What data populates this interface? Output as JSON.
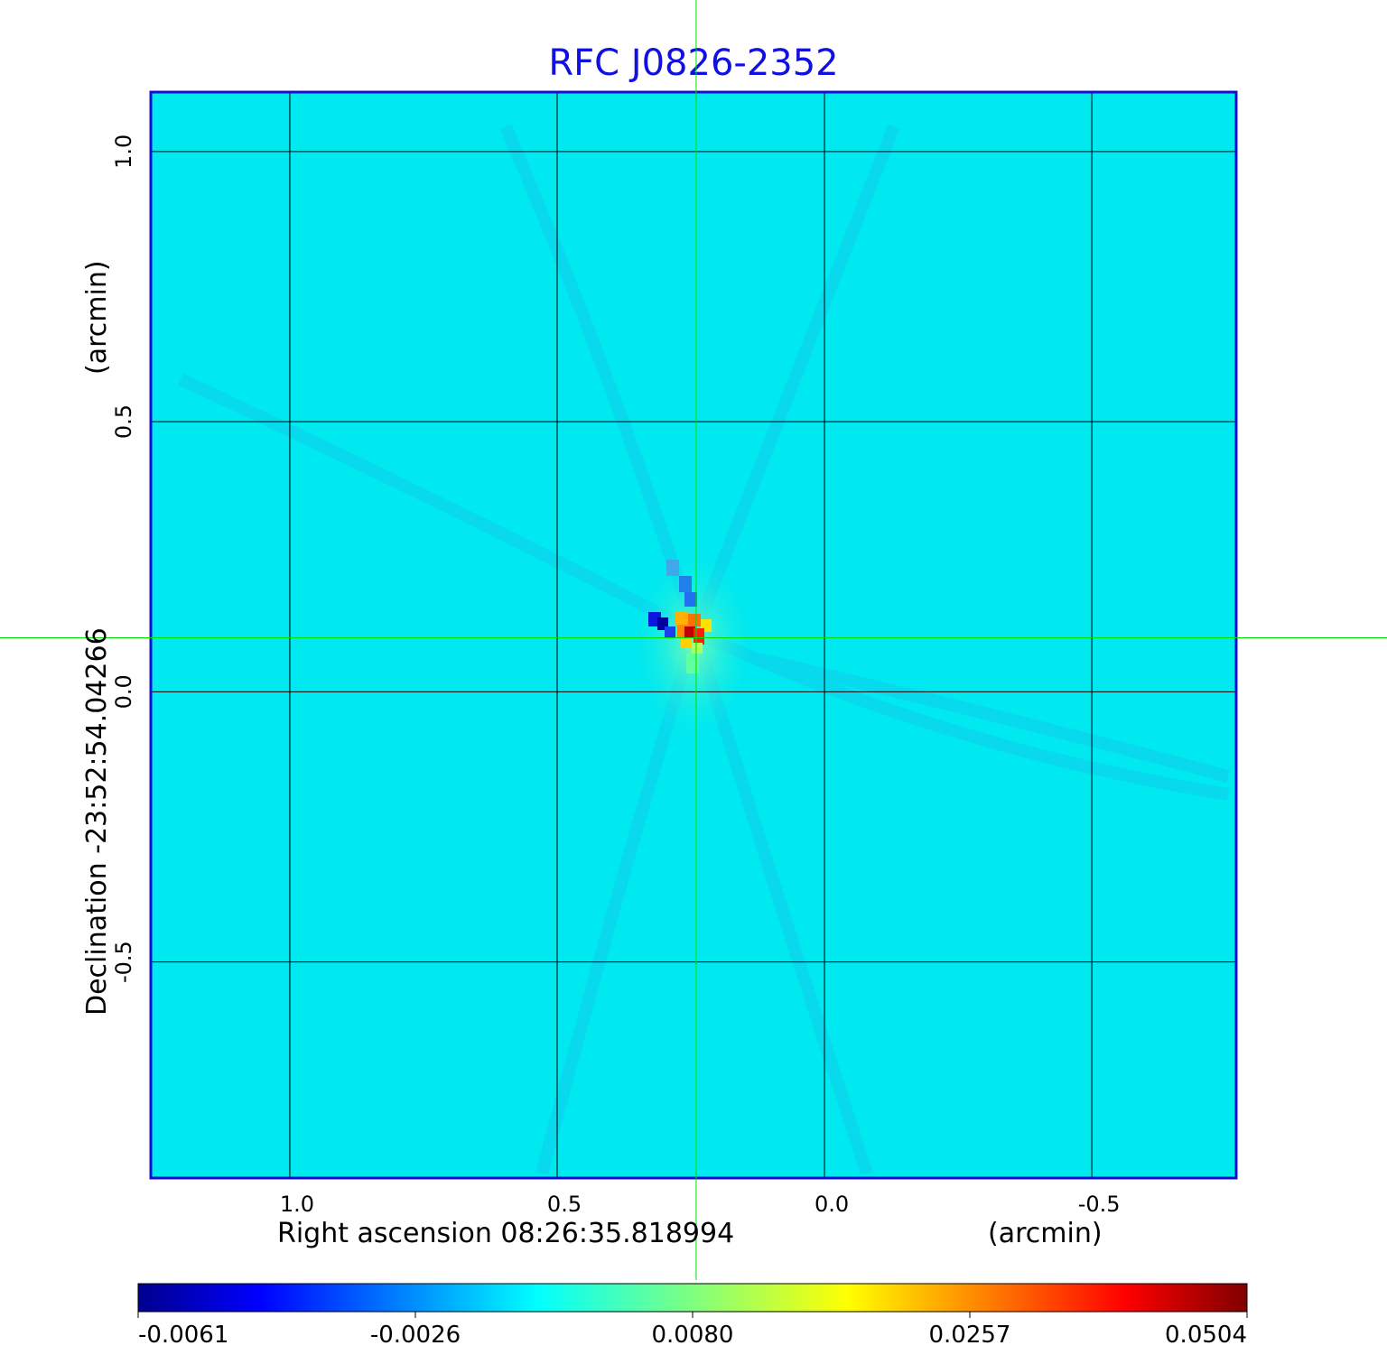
{
  "chart_data": {
    "type": "heatmap",
    "title": "RFC J0826-2352",
    "xlabel": "Right ascension  08:26:35.818994",
    "xunit": "(arcmin)",
    "ylabel": "Declination  -23:52:54.04266",
    "yunit": "(arcmin)",
    "x_ticks": [
      "1.0",
      "0.5",
      "0.0",
      "-0.5"
    ],
    "y_ticks": [
      "1.0",
      "0.5",
      "0.0",
      "-0.5"
    ],
    "xlim": [
      1.26,
      -0.77
    ],
    "ylim": [
      -0.9,
      1.11
    ],
    "x_tick_values": [
      1.0,
      0.5,
      0.0,
      -0.5
    ],
    "y_tick_values": [
      1.0,
      0.5,
      0.0,
      -0.5
    ],
    "grid": true,
    "crosshair": {
      "x": 0.24,
      "y": 0.1
    },
    "peak": {
      "x": 0.23,
      "y": 0.11,
      "value": 0.0504
    },
    "colormap": "jet",
    "colorbar": {
      "orientation": "horizontal",
      "tick_labels": [
        "-0.0061",
        "-0.0026",
        "0.0080",
        "0.0257",
        "0.0504"
      ],
      "tick_values": [
        -0.0061,
        -0.0026,
        0.008,
        0.0257,
        0.0504
      ],
      "range": [
        -0.0061,
        0.0504
      ]
    },
    "colors": {
      "title": "#1010e0",
      "frame": "#1010d0",
      "background_field": "#00e8f0",
      "crosshair": "#00e000",
      "grid": "#000000"
    }
  }
}
